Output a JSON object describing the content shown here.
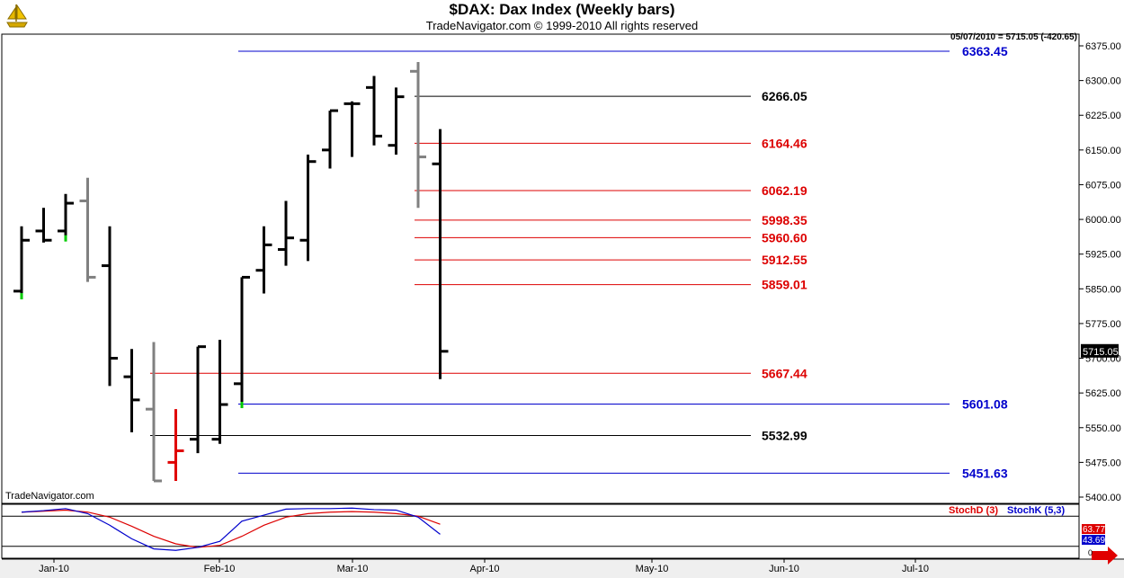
{
  "header": {
    "title": "$DAX:  Dax Index  (Weekly bars)",
    "subtitle": "TradeNavigator.com © 1999-2010 All rights reserved",
    "readout": "05/07/2010 = 5715.05 (-420.65)",
    "watermark": "TradeNavigator.com"
  },
  "colors": {
    "bar_black": "#000000",
    "bar_gray": "#808080",
    "up_green": "#00cc00",
    "down_red": "#e00000",
    "level_blue": "#0000cc",
    "level_red": "#dd0000",
    "level_black": "#000000",
    "stochD": "#dd0000",
    "stochK": "#0000cc"
  },
  "chart_data": {
    "type": "ohlc",
    "price_axis": {
      "ylim": [
        5400,
        6375
      ],
      "ticks": [
        "6375.00",
        "6300.00",
        "6225.00",
        "6150.00",
        "6075.00",
        "6000.00",
        "5925.00",
        "5850.00",
        "5775.00",
        "5700.00",
        "5625.00",
        "5550.00",
        "5475.00",
        "5400.00"
      ],
      "last_price_label": "5715.05"
    },
    "x_axis_labels": [
      "Jan-10",
      "Feb-10",
      "Mar-10",
      "Apr-10",
      "May-10",
      "Jun-10",
      "Jul-10"
    ],
    "bars": [
      {
        "week": 1,
        "open": 5845,
        "high": 5985,
        "low": 5835,
        "close": 5955,
        "color": "black",
        "mark": "green"
      },
      {
        "week": 2,
        "open": 5975,
        "high": 6025,
        "low": 5950,
        "close": 5955,
        "color": "black"
      },
      {
        "week": 3,
        "open": 5975,
        "high": 6055,
        "low": 5960,
        "close": 6035,
        "color": "black",
        "mark": "green"
      },
      {
        "week": 4,
        "open": 6040,
        "high": 6090,
        "low": 5865,
        "close": 5875,
        "color": "gray"
      },
      {
        "week": 5,
        "open": 5900,
        "high": 5985,
        "low": 5640,
        "close": 5700,
        "color": "black"
      },
      {
        "week": 6,
        "open": 5660,
        "high": 5720,
        "low": 5540,
        "close": 5610,
        "color": "black"
      },
      {
        "week": 7,
        "open": 5590,
        "high": 5735,
        "low": 5435,
        "close": 5435,
        "color": "gray"
      },
      {
        "week": 8,
        "open": 5475,
        "high": 5590,
        "low": 5435,
        "close": 5500,
        "color": "red"
      },
      {
        "week": 9,
        "open": 5525,
        "high": 5725,
        "low": 5495,
        "close": 5725,
        "color": "black"
      },
      {
        "week": 10,
        "open": 5525,
        "high": 5740,
        "low": 5515,
        "close": 5600,
        "color": "black"
      },
      {
        "week": 11,
        "open": 5645,
        "high": 5875,
        "low": 5600,
        "close": 5875,
        "color": "black",
        "mark": "green"
      },
      {
        "week": 12,
        "open": 5890,
        "high": 5985,
        "low": 5840,
        "close": 5945,
        "color": "black"
      },
      {
        "week": 13,
        "open": 5935,
        "high": 6040,
        "low": 5900,
        "close": 5960,
        "color": "black"
      },
      {
        "week": 14,
        "open": 5955,
        "high": 6140,
        "low": 5910,
        "close": 6125,
        "color": "black"
      },
      {
        "week": 15,
        "open": 6150,
        "high": 6235,
        "low": 6110,
        "close": 6235,
        "color": "black"
      },
      {
        "week": 16,
        "open": 6250,
        "high": 6255,
        "low": 6135,
        "close": 6250,
        "color": "black"
      },
      {
        "week": 17,
        "open": 6285,
        "high": 6310,
        "low": 6160,
        "close": 6180,
        "color": "black"
      },
      {
        "week": 18,
        "open": 6160,
        "high": 6285,
        "low": 6140,
        "close": 6265,
        "color": "black"
      },
      {
        "week": 19,
        "open": 6320,
        "high": 6340,
        "low": 6025,
        "close": 6135,
        "color": "gray"
      },
      {
        "week": 20,
        "open": 6120,
        "high": 6195,
        "low": 5655,
        "close": 5715,
        "color": "black"
      }
    ],
    "levels": [
      {
        "value": 6363.45,
        "label": "6363.45",
        "color": "blue",
        "from_week": 11
      },
      {
        "value": 6266.05,
        "label": "6266.05",
        "color": "black",
        "from_week": 19
      },
      {
        "value": 6164.46,
        "label": "6164.46",
        "color": "red",
        "from_week": 19
      },
      {
        "value": 6062.19,
        "label": "6062.19",
        "color": "red",
        "from_week": 19
      },
      {
        "value": 5998.35,
        "label": "5998.35",
        "color": "red",
        "from_week": 19
      },
      {
        "value": 5960.6,
        "label": "5960.60",
        "color": "red",
        "from_week": 19
      },
      {
        "value": 5912.55,
        "label": "5912.55",
        "color": "red",
        "from_week": 19
      },
      {
        "value": 5859.01,
        "label": "5859.01",
        "color": "red",
        "from_week": 19
      },
      {
        "value": 5667.44,
        "label": "5667.44",
        "color": "red",
        "from_week": 7
      },
      {
        "value": 5601.08,
        "label": "5601.08",
        "color": "blue",
        "from_week": 11
      },
      {
        "value": 5532.99,
        "label": "5532.99",
        "color": "black",
        "from_week": 7
      },
      {
        "value": 5451.63,
        "label": "5451.63",
        "color": "blue",
        "from_week": 11
      }
    ],
    "stochastic": {
      "legend": [
        "StochD (3)",
        "StochK (5,3)"
      ],
      "d_label": "63.77",
      "k_label": "43.69",
      "stochD": [
        88,
        90,
        92,
        88,
        78,
        60,
        40,
        25,
        18,
        22,
        40,
        62,
        78,
        85,
        88,
        89,
        88,
        85,
        80,
        64
      ],
      "stochK": [
        88,
        91,
        95,
        85,
        62,
        35,
        15,
        12,
        18,
        30,
        70,
        82,
        94,
        95,
        95,
        96,
        93,
        92,
        78,
        44
      ]
    }
  }
}
